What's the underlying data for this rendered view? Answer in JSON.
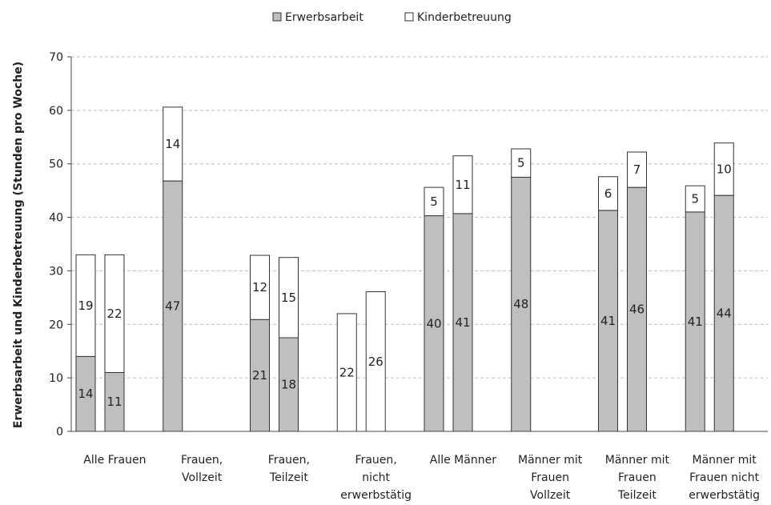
{
  "chart_data": {
    "type": "bar",
    "stacked": true,
    "ylabel": "Erwerbsarbeit und Kinderbetreuung (Stunden pro Woche)",
    "ylim": [
      0,
      70
    ],
    "yticks": [
      0,
      10,
      20,
      30,
      40,
      50,
      60,
      70
    ],
    "grid": true,
    "legend_position": "top-center",
    "series_meta": [
      {
        "name": "Erwerbsarbeit",
        "color": "#bfbfbf"
      },
      {
        "name": "Kinderbetreuung",
        "color": "#ffffff"
      }
    ],
    "groups": [
      {
        "label": [
          "Alle Frauen"
        ],
        "bars": [
          {
            "erwerb": 14,
            "kinder": 19,
            "erwerb_label": "14",
            "kinder_label": "19"
          },
          {
            "erwerb": 11,
            "kinder": 22,
            "erwerb_label": "11",
            "kinder_label": "22"
          }
        ]
      },
      {
        "label": [
          "Frauen,",
          "Vollzeit"
        ],
        "bars": [
          {
            "erwerb": 46.8,
            "kinder": 13.8,
            "erwerb_label": "47",
            "kinder_label": "14"
          }
        ]
      },
      {
        "label": [
          "Frauen,",
          "Teilzeit"
        ],
        "bars": [
          {
            "erwerb": 20.9,
            "kinder": 12,
            "erwerb_label": "21",
            "kinder_label": "12"
          },
          {
            "erwerb": 17.5,
            "kinder": 15,
            "erwerb_label": "18",
            "kinder_label": "15"
          }
        ]
      },
      {
        "label": [
          "Frauen,",
          "nicht",
          "erwerbstätig"
        ],
        "bars": [
          {
            "erwerb": 0,
            "kinder": 22,
            "erwerb_label": "",
            "kinder_label": "22"
          },
          {
            "erwerb": 0,
            "kinder": 26.1,
            "erwerb_label": "",
            "kinder_label": "26"
          }
        ]
      },
      {
        "label": [
          "Alle Männer"
        ],
        "bars": [
          {
            "erwerb": 40.3,
            "kinder": 5.3,
            "erwerb_label": "40",
            "kinder_label": "5"
          },
          {
            "erwerb": 40.7,
            "kinder": 10.8,
            "erwerb_label": "41",
            "kinder_label": "11"
          }
        ]
      },
      {
        "label": [
          "Männer mit",
          "Frauen",
          "Vollzeit"
        ],
        "bars": [
          {
            "erwerb": 47.5,
            "kinder": 5.3,
            "erwerb_label": "48",
            "kinder_label": "5"
          }
        ]
      },
      {
        "label": [
          "Männer mit",
          "Frauen",
          "Teilzeit"
        ],
        "bars": [
          {
            "erwerb": 41.3,
            "kinder": 6.3,
            "erwerb_label": "41",
            "kinder_label": "6"
          },
          {
            "erwerb": 45.6,
            "kinder": 6.6,
            "erwerb_label": "46",
            "kinder_label": "7"
          }
        ]
      },
      {
        "label": [
          "Männer mit",
          "Frauen nicht",
          "erwerbstätig"
        ],
        "bars": [
          {
            "erwerb": 41,
            "kinder": 4.9,
            "erwerb_label": "41",
            "kinder_label": "5"
          },
          {
            "erwerb": 44.1,
            "kinder": 9.8,
            "erwerb_label": "44",
            "kinder_label": "10"
          }
        ]
      }
    ]
  }
}
